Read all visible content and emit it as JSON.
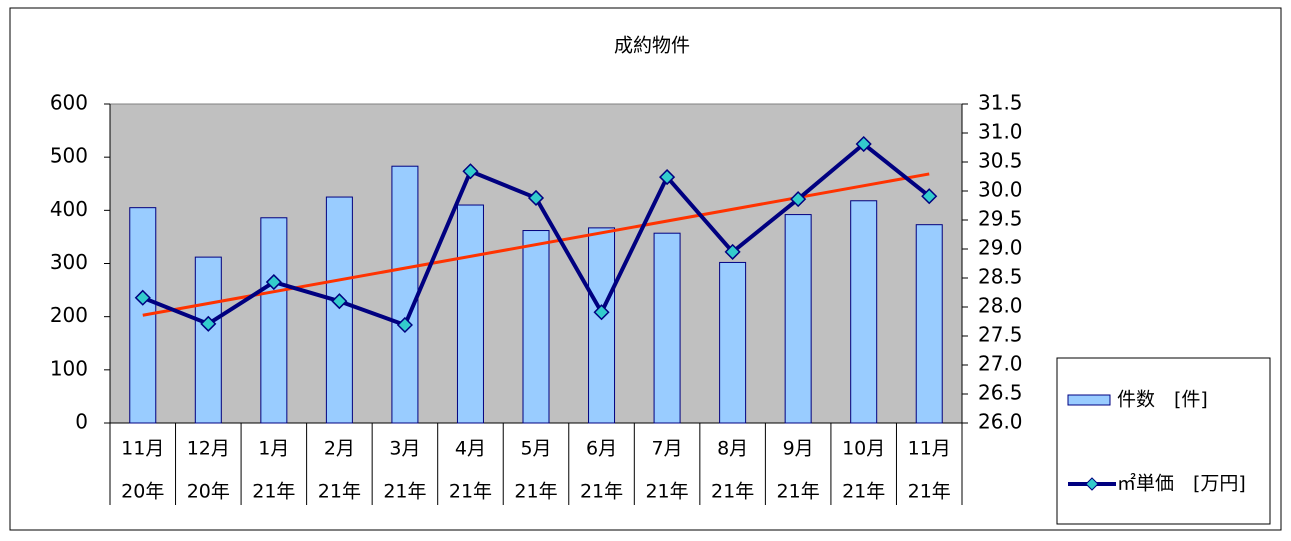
{
  "chart_data": {
    "type": "bar_line",
    "title": "成約物件",
    "categories": [
      "11月",
      "12月",
      "1月",
      "2月",
      "3月",
      "4月",
      "5月",
      "6月",
      "7月",
      "8月",
      "9月",
      "10月",
      "11月"
    ],
    "years": [
      "20年",
      "20年",
      "21年",
      "21年",
      "21年",
      "21年",
      "21年",
      "21年",
      "21年",
      "21年",
      "21年",
      "21年",
      "21年"
    ],
    "series": [
      {
        "name": "件数　[件]",
        "type": "bar",
        "color": "#99ccff",
        "values": [
          405,
          312,
          386,
          425,
          483,
          410,
          362,
          367,
          357,
          302,
          392,
          418,
          373
        ]
      },
      {
        "name": "㎡単価　[万円]",
        "type": "line",
        "axis": "y2",
        "color": "#000080",
        "marker_color": "#33cccc",
        "values": [
          28.16,
          27.71,
          28.43,
          28.1,
          27.69,
          30.34,
          29.88,
          27.91,
          30.24,
          28.95,
          29.86,
          30.81,
          29.91
        ]
      }
    ],
    "trendline": true,
    "trendline_color": "#ff3300",
    "ylim": [
      0,
      600
    ],
    "yticks": [
      0,
      100,
      200,
      300,
      400,
      500,
      600
    ],
    "y2lim": [
      26,
      31.5
    ],
    "y2ticks": [
      {
        "value": 26,
        "label": "26.0"
      },
      26.5,
      {
        "value": 27,
        "label": "27.0"
      },
      27.5,
      {
        "value": 28,
        "label": "28.0"
      },
      28.5,
      {
        "value": 29,
        "label": "29.0"
      },
      29.5,
      {
        "value": 30,
        "label": "30.0"
      },
      30.5,
      {
        "value": 31,
        "label": "31.0"
      },
      31.5
    ],
    "plot_background": "#c0c0c0",
    "legend": "lower right"
  }
}
